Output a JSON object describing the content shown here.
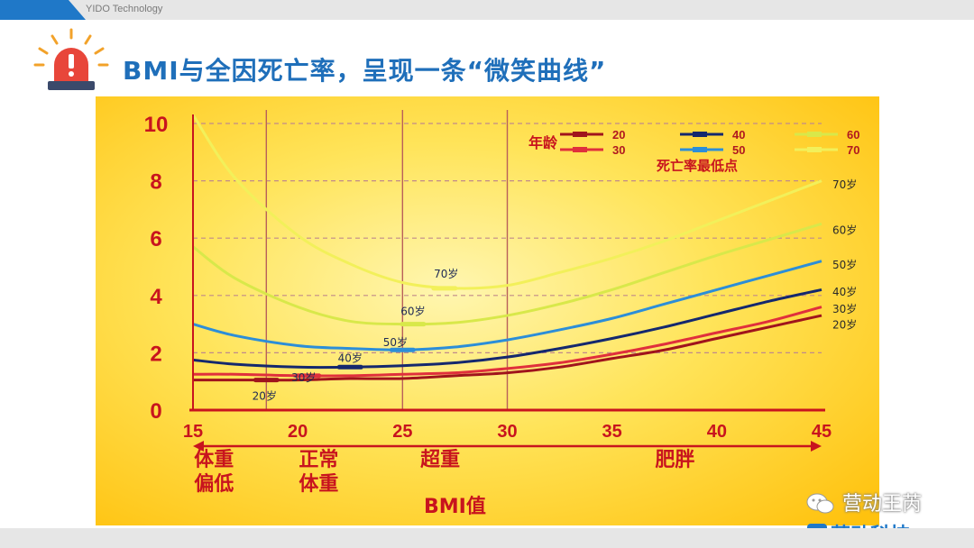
{
  "header": {
    "brand": "YIDO Technology"
  },
  "slide": {
    "title": "BMI与全因死亡率，呈现一条“微笑曲线”"
  },
  "colors": {
    "accent": "#1f6fba",
    "chart_bg": "#ffd21a",
    "axis_red": "#c8141e",
    "age20": "#a0141c",
    "age30": "#e0303c",
    "age40": "#14286e",
    "age50": "#2c8ed8",
    "age60": "#d8e84a",
    "age70": "#f2f05a"
  },
  "chart_data": {
    "type": "line",
    "title": "",
    "xlabel": "BMI值",
    "ylabel": "",
    "xlim": [
      15,
      45
    ],
    "ylim": [
      0,
      10
    ],
    "x_ticks": [
      "15",
      "20",
      "25",
      "30",
      "35",
      "40",
      "45"
    ],
    "y_ticks": [
      "0",
      "2",
      "4",
      "6",
      "8",
      "10"
    ],
    "vertical_lines": [
      18.5,
      25,
      30
    ],
    "grid": "horizontal dashed",
    "x": [
      15,
      17,
      20,
      22.5,
      25,
      27.5,
      30,
      32.5,
      35,
      37.5,
      40,
      42.5,
      45
    ],
    "series": [
      {
        "name": "20",
        "label": "20岁",
        "values": [
          1.05,
          1.05,
          1.05,
          1.1,
          1.1,
          1.2,
          1.3,
          1.5,
          1.8,
          2.1,
          2.5,
          2.9,
          3.3
        ]
      },
      {
        "name": "30",
        "label": "30岁",
        "values": [
          1.25,
          1.25,
          1.2,
          1.2,
          1.25,
          1.3,
          1.45,
          1.65,
          1.95,
          2.3,
          2.7,
          3.1,
          3.6
        ]
      },
      {
        "name": "40",
        "label": "40岁",
        "values": [
          1.75,
          1.6,
          1.5,
          1.5,
          1.55,
          1.65,
          1.85,
          2.15,
          2.5,
          2.9,
          3.35,
          3.8,
          4.2
        ]
      },
      {
        "name": "50",
        "label": "50岁",
        "values": [
          3.0,
          2.6,
          2.25,
          2.15,
          2.1,
          2.2,
          2.45,
          2.8,
          3.2,
          3.7,
          4.2,
          4.7,
          5.2
        ]
      },
      {
        "name": "60",
        "label": "60岁",
        "values": [
          5.7,
          4.6,
          3.6,
          3.1,
          3.0,
          3.05,
          3.3,
          3.7,
          4.2,
          4.8,
          5.4,
          5.95,
          6.5
        ]
      },
      {
        "name": "70",
        "label": "70岁",
        "values": [
          10.3,
          8.1,
          6.1,
          5.1,
          4.45,
          4.25,
          4.35,
          4.8,
          5.3,
          5.9,
          6.6,
          7.3,
          8.0
        ]
      }
    ],
    "minimum_points": [
      {
        "series": "20",
        "x": 18.5,
        "y": 1.05,
        "label": "20岁"
      },
      {
        "series": "30",
        "x": 20.5,
        "y": 1.2,
        "label": "30岁"
      },
      {
        "series": "40",
        "x": 22.5,
        "y": 1.5,
        "label": "40岁"
      },
      {
        "series": "50",
        "x": 25,
        "y": 2.1,
        "label": "50岁"
      },
      {
        "series": "60",
        "x": 25.5,
        "y": 3.0,
        "label": "60岁"
      },
      {
        "series": "70",
        "x": 27,
        "y": 4.25,
        "label": "70岁"
      }
    ],
    "legend": {
      "title": "年龄",
      "placement": "top-right",
      "note": "死亡率最低点"
    },
    "categories": [
      {
        "label": "体重\n偏低",
        "line1": "体重",
        "line2": "偏低"
      },
      {
        "label": "正常\n体重",
        "line1": "正常",
        "line2": "体重"
      },
      {
        "label": "超重"
      },
      {
        "label": "肥胖"
      }
    ]
  },
  "watermark": {
    "account": "营动王芮",
    "company": "营动科技"
  }
}
